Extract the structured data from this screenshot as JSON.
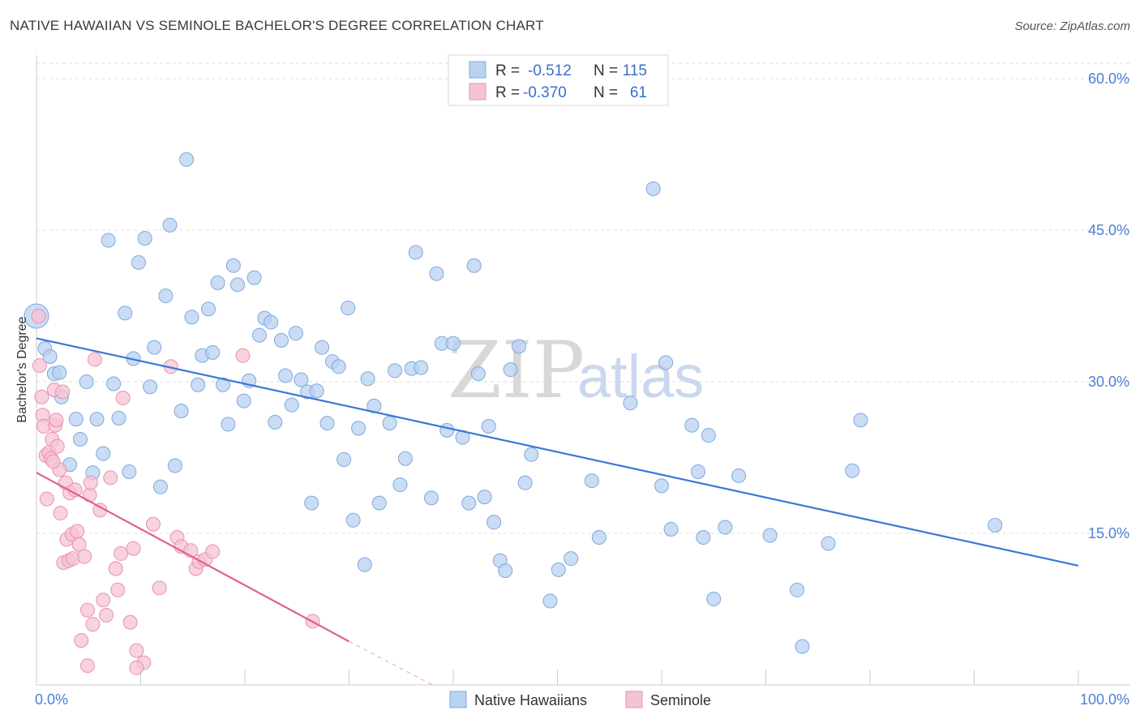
{
  "header": {
    "title": "NATIVE HAWAIIAN VS SEMINOLE BACHELOR'S DEGREE CORRELATION CHART",
    "source": "Source: ZipAtlas.com"
  },
  "watermark": {
    "zip": "ZIP",
    "atlas": "atlas"
  },
  "colors": {
    "blue_fill": "#b8d2f2",
    "blue_stroke": "#7fa8dc",
    "blue_line": "#3a78d4",
    "pink_fill": "#f6c3d3",
    "pink_stroke": "#e892ae",
    "pink_line": "#e0608c",
    "grid": "#dddddd",
    "axis_label": "#4a7fd6"
  },
  "legend": {
    "rows": [
      {
        "r_label": "R =",
        "r_value": "-0.512",
        "n_label": "N =",
        "n_value": "115"
      },
      {
        "r_label": "R =",
        "r_value": "-0.370",
        "n_label": "N =",
        "n_value": "61"
      }
    ]
  },
  "chart_data": {
    "type": "scatter",
    "title": "NATIVE HAWAIIAN VS SEMINOLE BACHELOR'S DEGREE CORRELATION CHART",
    "xlabel": "",
    "ylabel": "Bachelor's Degree",
    "xlim": [
      0,
      100
    ],
    "ylim": [
      0,
      60
    ],
    "x_tick_labels": [
      "0.0%",
      "100.0%"
    ],
    "y_ticks": [
      15,
      30,
      45,
      60
    ],
    "y_tick_labels": [
      "15.0%",
      "30.0%",
      "45.0%",
      "60.0%"
    ],
    "series": [
      {
        "name": "Native Hawaiians",
        "r": -0.512,
        "n": 115,
        "trend": {
          "x": [
            0,
            100
          ],
          "y": [
            34.3,
            11.8
          ]
        },
        "points": [
          [
            0,
            36.5
          ],
          [
            0.8,
            33.3
          ],
          [
            1.3,
            32.5
          ],
          [
            1.7,
            30.8
          ],
          [
            2.2,
            30.9
          ],
          [
            2.4,
            28.5
          ],
          [
            3.2,
            21.8
          ],
          [
            3.8,
            26.3
          ],
          [
            4.2,
            24.3
          ],
          [
            4.8,
            30.0
          ],
          [
            5.4,
            21.0
          ],
          [
            5.8,
            26.3
          ],
          [
            6.4,
            22.9
          ],
          [
            6.9,
            44.0
          ],
          [
            7.4,
            29.8
          ],
          [
            7.9,
            26.4
          ],
          [
            8.5,
            36.8
          ],
          [
            8.9,
            21.1
          ],
          [
            9.3,
            32.3
          ],
          [
            9.8,
            41.8
          ],
          [
            10.4,
            44.2
          ],
          [
            10.9,
            29.5
          ],
          [
            11.3,
            33.4
          ],
          [
            11.9,
            19.6
          ],
          [
            12.4,
            38.5
          ],
          [
            12.8,
            45.5
          ],
          [
            13.3,
            21.7
          ],
          [
            13.9,
            27.1
          ],
          [
            14.4,
            52.0
          ],
          [
            14.9,
            36.4
          ],
          [
            15.5,
            29.7
          ],
          [
            15.9,
            32.6
          ],
          [
            16.5,
            37.2
          ],
          [
            16.9,
            32.9
          ],
          [
            17.4,
            39.8
          ],
          [
            17.9,
            29.7
          ],
          [
            18.4,
            25.8
          ],
          [
            18.9,
            41.5
          ],
          [
            19.3,
            39.6
          ],
          [
            19.9,
            28.1
          ],
          [
            20.4,
            30.1
          ],
          [
            20.9,
            40.3
          ],
          [
            21.4,
            34.6
          ],
          [
            21.9,
            36.3
          ],
          [
            22.5,
            35.9
          ],
          [
            22.9,
            26.0
          ],
          [
            23.5,
            34.1
          ],
          [
            23.9,
            30.6
          ],
          [
            24.5,
            27.7
          ],
          [
            24.9,
            34.8
          ],
          [
            25.4,
            30.2
          ],
          [
            26.0,
            29.0
          ],
          [
            26.4,
            18.0
          ],
          [
            26.9,
            29.1
          ],
          [
            27.4,
            33.4
          ],
          [
            27.9,
            25.9
          ],
          [
            28.4,
            32.0
          ],
          [
            29.0,
            31.5
          ],
          [
            29.5,
            22.3
          ],
          [
            29.9,
            37.3
          ],
          [
            30.4,
            16.3
          ],
          [
            30.9,
            25.4
          ],
          [
            31.5,
            11.9
          ],
          [
            31.8,
            30.3
          ],
          [
            32.4,
            27.6
          ],
          [
            32.9,
            18.0
          ],
          [
            33.9,
            25.9
          ],
          [
            34.4,
            31.1
          ],
          [
            34.9,
            19.8
          ],
          [
            35.4,
            22.4
          ],
          [
            36.0,
            31.3
          ],
          [
            36.4,
            42.8
          ],
          [
            36.9,
            31.4
          ],
          [
            37.9,
            18.5
          ],
          [
            38.4,
            40.7
          ],
          [
            38.9,
            33.8
          ],
          [
            39.4,
            25.2
          ],
          [
            40.0,
            33.8
          ],
          [
            40.9,
            24.5
          ],
          [
            41.5,
            18.0
          ],
          [
            42.0,
            41.5
          ],
          [
            42.4,
            30.8
          ],
          [
            43.0,
            18.6
          ],
          [
            43.4,
            25.6
          ],
          [
            43.9,
            16.1
          ],
          [
            44.5,
            12.3
          ],
          [
            45.0,
            11.3
          ],
          [
            45.5,
            31.2
          ],
          [
            46.3,
            33.5
          ],
          [
            46.9,
            20.0
          ],
          [
            47.5,
            22.8
          ],
          [
            49.3,
            8.3
          ],
          [
            50.1,
            11.4
          ],
          [
            51.3,
            12.5
          ],
          [
            53.3,
            20.2
          ],
          [
            54.0,
            14.6
          ],
          [
            57.0,
            27.9
          ],
          [
            59.2,
            49.1
          ],
          [
            60.0,
            19.7
          ],
          [
            60.4,
            31.9
          ],
          [
            60.9,
            15.4
          ],
          [
            62.9,
            25.7
          ],
          [
            63.5,
            21.1
          ],
          [
            64.0,
            14.6
          ],
          [
            64.5,
            24.7
          ],
          [
            65.0,
            8.5
          ],
          [
            66.1,
            15.6
          ],
          [
            67.4,
            20.7
          ],
          [
            70.4,
            14.8
          ],
          [
            73.0,
            9.4
          ],
          [
            73.5,
            3.8
          ],
          [
            76.0,
            14.0
          ],
          [
            78.3,
            21.2
          ],
          [
            79.1,
            26.2
          ],
          [
            92.0,
            15.8
          ]
        ]
      },
      {
        "name": "Seminole",
        "r": -0.37,
        "n": 61,
        "trend": {
          "x": [
            0,
            30
          ],
          "y": [
            21.0,
            4.3
          ]
        },
        "trend_dashed": {
          "x": [
            30,
            38
          ],
          "y": [
            4.3,
            0
          ]
        },
        "points": [
          [
            0.2,
            36.5
          ],
          [
            0.3,
            31.6
          ],
          [
            0.5,
            28.5
          ],
          [
            0.6,
            26.7
          ],
          [
            0.7,
            25.6
          ],
          [
            0.9,
            22.7
          ],
          [
            1.0,
            18.4
          ],
          [
            1.2,
            23.0
          ],
          [
            1.4,
            22.4
          ],
          [
            1.5,
            24.3
          ],
          [
            1.7,
            29.2
          ],
          [
            1.8,
            25.7
          ],
          [
            1.9,
            26.2
          ],
          [
            2.0,
            23.6
          ],
          [
            2.2,
            21.3
          ],
          [
            2.3,
            17.0
          ],
          [
            2.5,
            29.0
          ],
          [
            2.6,
            12.1
          ],
          [
            2.8,
            20.0
          ],
          [
            2.9,
            14.4
          ],
          [
            3.1,
            12.3
          ],
          [
            3.2,
            19.0
          ],
          [
            3.4,
            14.9
          ],
          [
            3.5,
            12.5
          ],
          [
            3.7,
            19.3
          ],
          [
            3.9,
            15.2
          ],
          [
            4.1,
            13.9
          ],
          [
            4.3,
            4.4
          ],
          [
            4.6,
            12.7
          ],
          [
            4.9,
            7.4
          ],
          [
            5.1,
            18.8
          ],
          [
            5.2,
            20.0
          ],
          [
            5.4,
            6.0
          ],
          [
            5.6,
            32.2
          ],
          [
            6.1,
            17.3
          ],
          [
            6.4,
            8.4
          ],
          [
            6.7,
            6.9
          ],
          [
            7.1,
            20.5
          ],
          [
            7.6,
            11.5
          ],
          [
            7.8,
            9.4
          ],
          [
            8.1,
            13.0
          ],
          [
            8.3,
            28.4
          ],
          [
            9.0,
            6.2
          ],
          [
            9.6,
            3.4
          ],
          [
            10.3,
            2.2
          ],
          [
            11.2,
            15.9
          ],
          [
            11.8,
            9.6
          ],
          [
            12.9,
            31.5
          ],
          [
            13.5,
            14.6
          ],
          [
            13.9,
            13.7
          ],
          [
            14.8,
            13.3
          ],
          [
            15.3,
            11.5
          ],
          [
            15.6,
            12.2
          ],
          [
            16.2,
            12.4
          ],
          [
            16.9,
            13.2
          ],
          [
            19.8,
            32.6
          ],
          [
            26.5,
            6.3
          ],
          [
            9.6,
            1.7
          ],
          [
            4.9,
            1.9
          ],
          [
            1.6,
            22.1
          ],
          [
            9.3,
            13.5
          ]
        ]
      }
    ]
  },
  "bottom_legend": {
    "items": [
      "Native Hawaiians",
      "Seminole"
    ]
  }
}
